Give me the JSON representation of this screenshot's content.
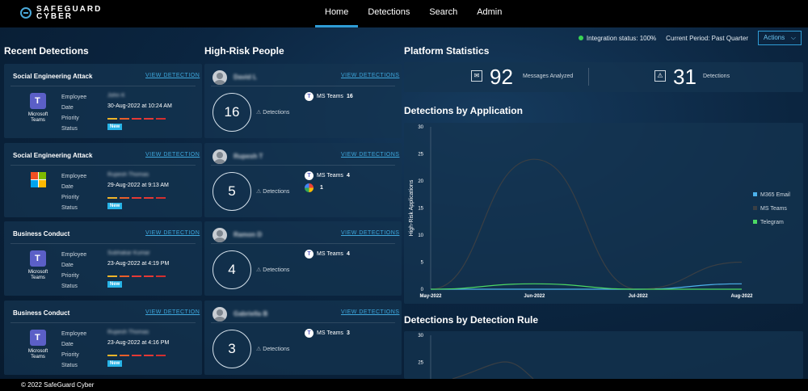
{
  "nav": {
    "logo_line1": "SAFEGUARD",
    "logo_line2": "CYBER",
    "items": [
      "Home",
      "Detections",
      "Search",
      "Admin"
    ]
  },
  "status": {
    "integration": "Integration status: 100%",
    "period": "Current Period: Past Quarter",
    "actions_label": "Actions",
    "actions_caret": "⌵"
  },
  "sections": {
    "recent_detections": "Recent Detections",
    "high_risk_people": "High-Risk People",
    "platform_statistics": "Platform Statistics",
    "detections_by_application": "Detections by Application",
    "detections_by_rule": "Detections by Detection Rule"
  },
  "common": {
    "view_detection": "VIEW DETECTION",
    "view_detections": "VIEW DETECTIONS",
    "employee": "Employee",
    "date": "Date",
    "priority": "Priority",
    "status": "Status",
    "detections": "Detections"
  },
  "detections": [
    {
      "title": "Social Engineering Attack",
      "app": "Microsoft Teams",
      "app_icon": "teams-icon",
      "employee": "John K",
      "date": "30-Aug-2022 at 10:24 AM",
      "status": "New"
    },
    {
      "title": "Social Engineering Attack",
      "app": "",
      "app_icon": "microsoft-icon",
      "employee": "Rupesh Thomas",
      "date": "29-Aug-2022 at 9:13 AM",
      "status": "New"
    },
    {
      "title": "Business Conduct",
      "app": "Microsoft Teams",
      "app_icon": "teams-icon",
      "employee": "Subhakar Kumar",
      "date": "23-Aug-2022 at 4:19 PM",
      "status": "New"
    },
    {
      "title": "Business Conduct",
      "app": "Microsoft Teams",
      "app_icon": "teams-icon",
      "employee": "Rupesh Thomas",
      "date": "23-Aug-2022 at 4:16 PM",
      "status": "New"
    }
  ],
  "priority_colors": [
    "#f0b429",
    "#e85d2a",
    "#e53935",
    "#e53935",
    "#d32f2f"
  ],
  "people": [
    {
      "name": "David L",
      "count": "16",
      "apps": [
        {
          "icon": "teams-icon",
          "label": "MS Teams",
          "count": "16"
        }
      ]
    },
    {
      "name": "Rupesh T",
      "count": "5",
      "apps": [
        {
          "icon": "teams-icon",
          "label": "MS Teams",
          "count": "4"
        },
        {
          "icon": "google-icon",
          "label": "",
          "count": "1"
        }
      ]
    },
    {
      "name": "Ramon D",
      "count": "4",
      "apps": [
        {
          "icon": "teams-icon",
          "label": "MS Teams",
          "count": "4"
        }
      ]
    },
    {
      "name": "Gabriella B",
      "count": "3",
      "apps": [
        {
          "icon": "teams-icon",
          "label": "MS Teams",
          "count": "3"
        }
      ]
    }
  ],
  "stats": {
    "messages_value": "92",
    "messages_label": "Messages Analyzed",
    "detections_value": "31",
    "detections_label": "Detections"
  },
  "chart_data": [
    {
      "type": "line",
      "title": "Detections by Application",
      "ylabel": "High-Risk Applications",
      "x": [
        "May-2022",
        "Jun-2022",
        "Jul-2022",
        "Aug-2022"
      ],
      "ylim": [
        0,
        30
      ],
      "yticks": [
        0,
        5,
        10,
        15,
        20,
        25,
        30
      ],
      "legend_position": "right",
      "series": [
        {
          "name": "M365 Email",
          "color": "#4db2ec",
          "values": [
            0,
            0,
            0,
            1
          ]
        },
        {
          "name": "MS Teams",
          "color": "#3a3f44",
          "values": [
            0,
            24,
            0,
            5
          ]
        },
        {
          "name": "Telegram",
          "color": "#4cd964",
          "values": [
            0,
            1,
            0,
            0
          ]
        }
      ]
    },
    {
      "type": "line",
      "title": "Detections by Detection Rule",
      "ylim": [
        0,
        30
      ],
      "yticks": [
        25,
        30
      ],
      "series": []
    }
  ],
  "footer": "© 2022 SafeGuard Cyber"
}
